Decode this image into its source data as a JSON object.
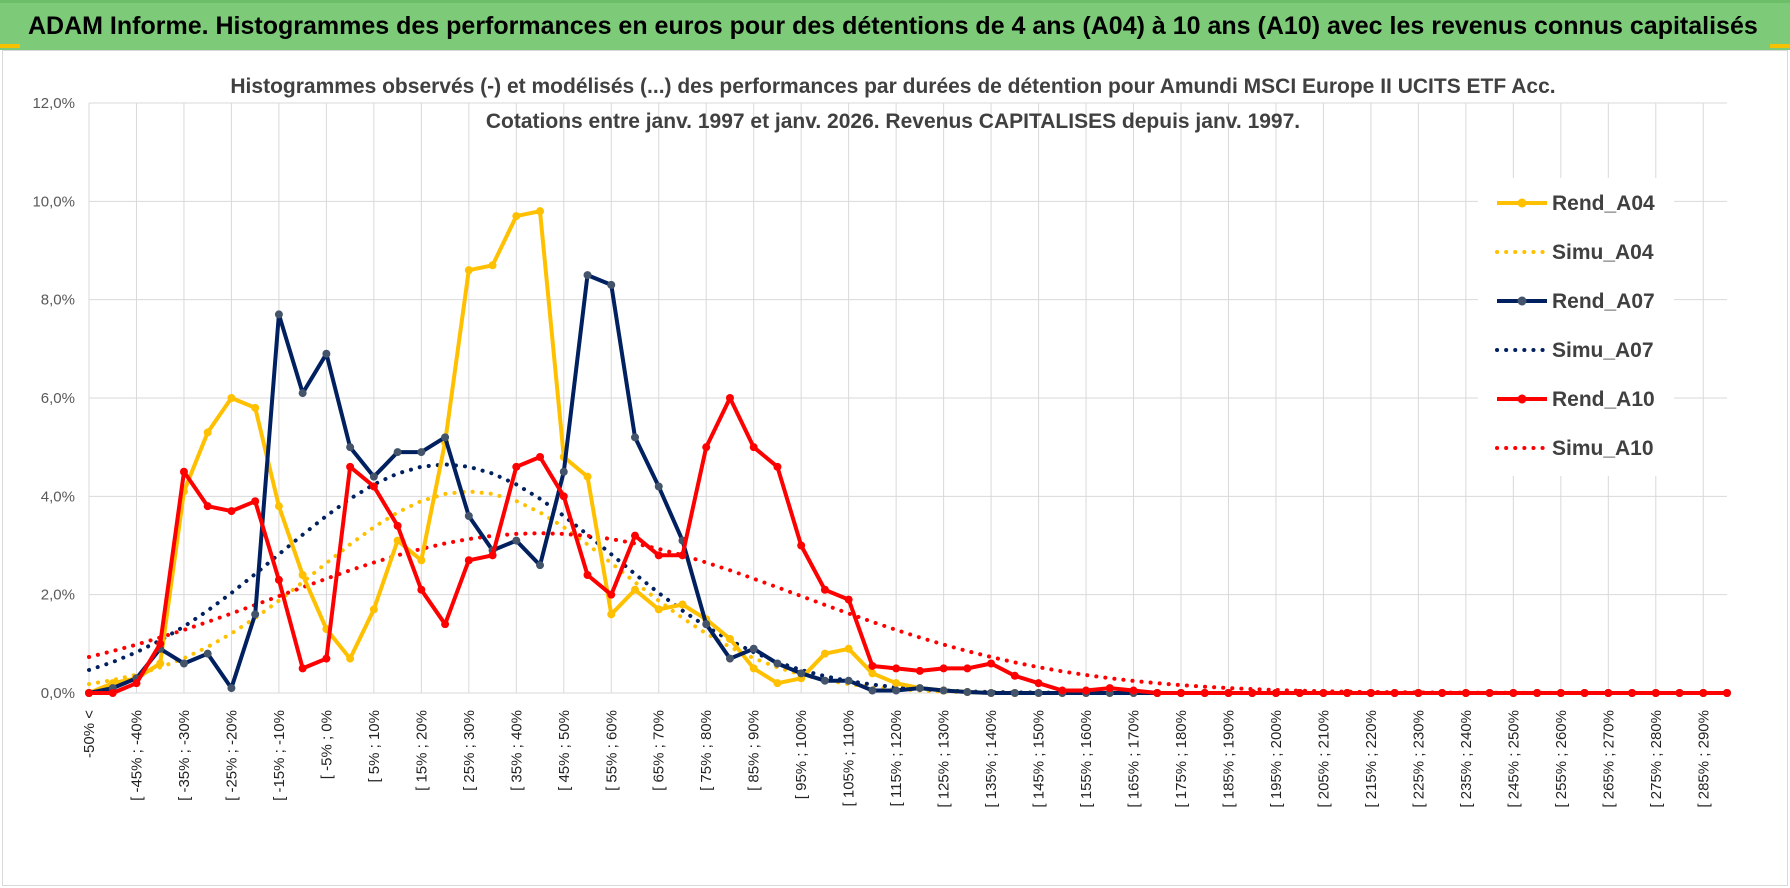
{
  "banner": {
    "title": "ADAM Informe. Histogrammes des performances en euros pour des détentions de 4 ans (A04) à 10 ans (A10) avec les revenus connus capitalisés"
  },
  "colors": {
    "banner_bg": "#7dcb79",
    "a04": "#ffc000",
    "a07": "#002060",
    "a10": "#ff0000",
    "grid": "#d9d9d9"
  },
  "chart_data": {
    "type": "line",
    "title": [
      "Histogrammes observés (-) et modélisés (...) des performances par durées de détention pour Amundi MSCI Europe II UCITS ETF Acc.",
      "Cotations entre janv. 1997 et janv. 2026. Revenus CAPITALISES depuis janv. 1997."
    ],
    "ylim": [
      0,
      12
    ],
    "yticks": [
      "0,0%",
      "2,0%",
      "4,0%",
      "6,0%",
      "8,0%",
      "10,0%",
      "12,0%"
    ],
    "x_labels": [
      "-50% <",
      "[ -45% ; -40%",
      "[ -35% ; -30%",
      "[ -25% ; -20%",
      "[ -15% ; -10%",
      "[ -5% ; 0%",
      "[ 5% ; 10%",
      "[ 15% ; 20%",
      "[ 25% ; 30%",
      "[ 35% ; 40%",
      "[ 45% ; 50%",
      "[ 55% ; 60%",
      "[ 65% ; 70%",
      "[ 75% ; 80%",
      "[ 85% ; 90%",
      "[ 95% ; 100%",
      "[ 105% ; 110%",
      "[ 115% ; 120%",
      "[ 125% ; 130%",
      "[ 135% ; 140%",
      "[ 145% ; 150%",
      "[ 155% ; 160%",
      "[ 165% ; 170%",
      "[ 175% ; 180%",
      "[ 185% ; 190%",
      "[ 195% ; 200%",
      "[ 205% ; 210%",
      "[ 215% ; 220%",
      "[ 225% ; 230%",
      "[ 235% ; 240%",
      "[ 245% ; 250%",
      "[ 255% ; 260%",
      "[ 265% ; 270%",
      "[ 275% ; 280%",
      "[ 285% ; 290%"
    ],
    "n_bins": 70,
    "series": [
      {
        "name": "Rend_A04",
        "color": "#ffc000",
        "style": "solid",
        "values": [
          0,
          0.2,
          0.3,
          0.6,
          4.1,
          5.3,
          6.0,
          5.8,
          3.8,
          2.4,
          1.3,
          0.7,
          1.7,
          3.1,
          2.7,
          5.1,
          8.6,
          8.7,
          9.7,
          9.8,
          4.8,
          4.4,
          1.6,
          2.1,
          1.7,
          1.8,
          1.5,
          1.1,
          0.5,
          0.2,
          0.3,
          0.8,
          0.9,
          0.4,
          0.2,
          0.1,
          0.05,
          0.02,
          0,
          0,
          0,
          0,
          0,
          0,
          0,
          0,
          0,
          0,
          0,
          0,
          0,
          0,
          0,
          0,
          0,
          0,
          0,
          0,
          0,
          0,
          0,
          0,
          0,
          0,
          0,
          0,
          0,
          0,
          0,
          0
        ]
      },
      {
        "name": "Simu_A04",
        "color": "#ffc000",
        "style": "dotted",
        "mu": 30,
        "sigma": 32,
        "peak": 4.1
      },
      {
        "name": "Rend_A07",
        "color": "#002060",
        "style": "solid",
        "values": [
          0,
          0.1,
          0.3,
          0.9,
          0.6,
          0.8,
          0.1,
          1.6,
          7.7,
          6.1,
          6.9,
          5.0,
          4.4,
          4.9,
          4.9,
          5.2,
          3.6,
          2.9,
          3.1,
          2.6,
          4.5,
          8.5,
          8.3,
          5.2,
          4.2,
          3.1,
          1.4,
          0.7,
          0.9,
          0.6,
          0.4,
          0.25,
          0.25,
          0.05,
          0.05,
          0.1,
          0.05,
          0.02,
          0,
          0,
          0,
          0,
          0,
          0,
          0,
          0,
          0,
          0,
          0,
          0,
          0,
          0,
          0,
          0,
          0,
          0,
          0,
          0,
          0,
          0,
          0,
          0,
          0,
          0,
          0,
          0,
          0,
          0,
          0,
          0
        ]
      },
      {
        "name": "Simu_A07",
        "color": "#002060",
        "style": "dotted",
        "mu": 25,
        "sigma": 35,
        "peak": 4.65
      },
      {
        "name": "Rend_A10",
        "color": "#ff0000",
        "style": "solid",
        "values": [
          0,
          0,
          0.2,
          1.0,
          4.5,
          3.8,
          3.7,
          3.9,
          2.3,
          0.5,
          0.7,
          4.6,
          4.2,
          3.4,
          2.1,
          1.4,
          2.7,
          2.8,
          4.6,
          4.8,
          4.0,
          2.4,
          2.0,
          3.2,
          2.8,
          2.8,
          5.0,
          6.0,
          5.0,
          4.6,
          3.0,
          2.1,
          1.9,
          0.55,
          0.5,
          0.45,
          0.5,
          0.5,
          0.6,
          0.35,
          0.2,
          0.05,
          0.05,
          0.1,
          0.05,
          0,
          0,
          0,
          0,
          0,
          0,
          0,
          0,
          0,
          0,
          0,
          0,
          0,
          0,
          0,
          0,
          0,
          0,
          0,
          0,
          0,
          0,
          0,
          0,
          0
        ]
      },
      {
        "name": "Simu_A10",
        "color": "#ff0000",
        "style": "dotted",
        "mu": 45,
        "sigma": 55,
        "peak": 3.25
      }
    ],
    "legend": [
      "Rend_A04",
      "Simu_A04",
      "Rend_A07",
      "Simu_A07",
      "Rend_A10",
      "Simu_A10"
    ]
  }
}
